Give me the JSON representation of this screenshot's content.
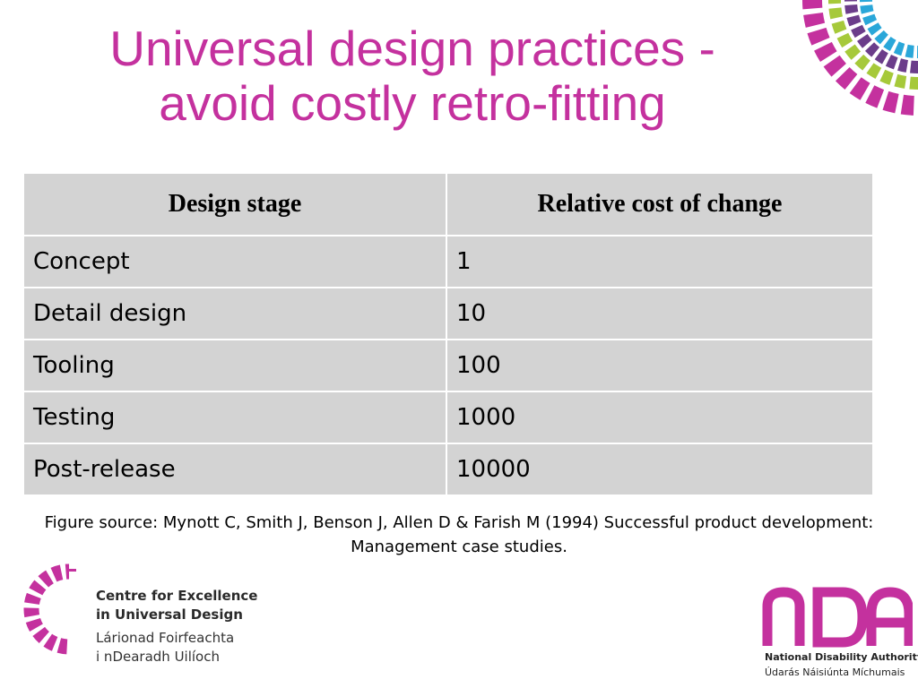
{
  "slide": {
    "title_line1": "Universal design practices -",
    "title_line2": "avoid costly retro-fitting"
  },
  "table": {
    "headers": [
      "Design stage",
      "Relative cost of change"
    ],
    "rows": [
      [
        "Concept",
        "1"
      ],
      [
        "Detail design",
        "10"
      ],
      [
        "Tooling",
        "100"
      ],
      [
        "Testing",
        "1000"
      ],
      [
        "Post-release",
        "10000"
      ]
    ]
  },
  "source": {
    "line1": "Figure source: Mynott C, Smith J, Benson J, Allen D & Farish M (1994) Successful product development:",
    "line2": "Management case studies."
  },
  "logos": {
    "ceud": {
      "english_line1": "Centre for Excellence",
      "english_line2": "in Universal Design",
      "irish_line1": "Lárionad Foirfeachta",
      "irish_line2": "i nDearadh Uilíoch"
    },
    "nda": {
      "mark": "nDA",
      "english": "National Disability Authority",
      "irish": "Údarás Náisiúnta Míchumais"
    }
  },
  "colors": {
    "title": "#c4319e",
    "magenta": "#c4319e",
    "green": "#a6c93a",
    "blue": "#2aa7d9",
    "purple": "#6b3d8a",
    "table_fill": "#d3d3d3"
  }
}
